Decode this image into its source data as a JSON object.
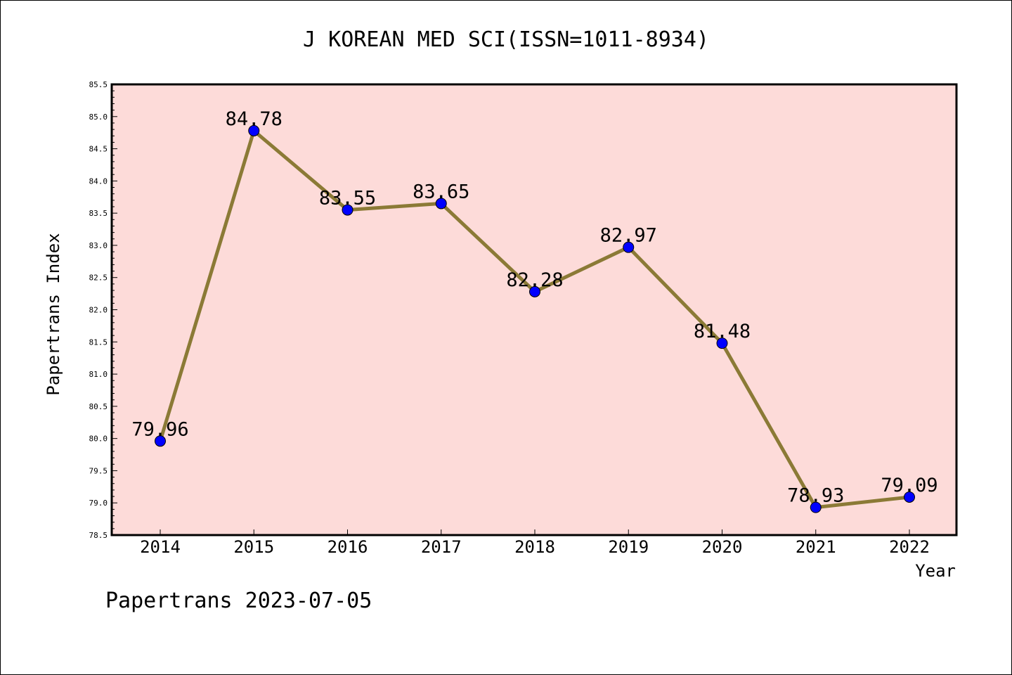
{
  "chart_data": {
    "type": "line",
    "title": "J KOREAN MED SCI(ISSN=1011-8934)",
    "xlabel": "Year",
    "ylabel": "Papertrans Index",
    "categories": [
      "2014",
      "2015",
      "2016",
      "2017",
      "2018",
      "2019",
      "2020",
      "2021",
      "2022"
    ],
    "values": [
      79.96,
      84.78,
      83.55,
      83.65,
      82.28,
      82.97,
      81.48,
      78.93,
      79.09
    ],
    "data_labels": [
      "79.96",
      "84.78",
      "83.55",
      "83.65",
      "82.28",
      "82.97",
      "81.48",
      "78.93",
      "79.09"
    ],
    "ylim": [
      78.5,
      85.5
    ],
    "yticks": [
      "78.5",
      "79.0",
      "79.5",
      "80.0",
      "80.5",
      "81.0",
      "81.5",
      "82.0",
      "82.5",
      "83.0",
      "83.5",
      "84.0",
      "84.5",
      "85.0",
      "85.5"
    ],
    "grid": false,
    "legend": "none",
    "colors": {
      "plot_background": "#fddbd9",
      "line": "#8b7a36",
      "marker": "#0000ff",
      "axes": "#000000"
    }
  },
  "footer": "Papertrans 2023-07-05"
}
